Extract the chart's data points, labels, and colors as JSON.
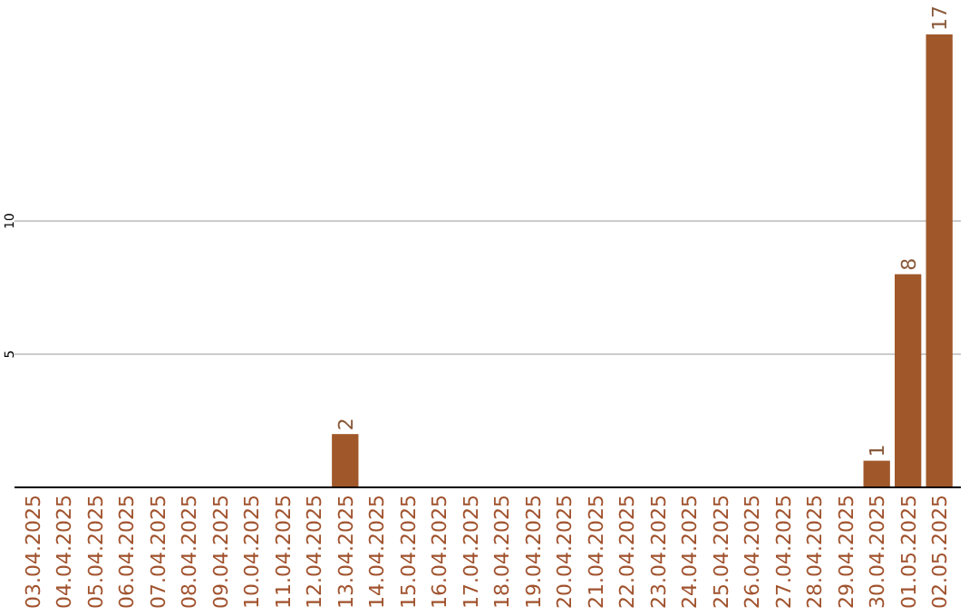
{
  "chart_data": {
    "type": "bar",
    "categories": [
      "03.04.2025",
      "04.04.2025",
      "05.04.2025",
      "06.04.2025",
      "07.04.2025",
      "08.04.2025",
      "09.04.2025",
      "10.04.2025",
      "11.04.2025",
      "12.04.2025",
      "13.04.2025",
      "14.04.2025",
      "15.04.2025",
      "16.04.2025",
      "17.04.2025",
      "18.04.2025",
      "19.04.2025",
      "20.04.2025",
      "21.04.2025",
      "22.04.2025",
      "23.04.2025",
      "24.04.2025",
      "25.04.2025",
      "26.04.2025",
      "27.04.2025",
      "28.04.2025",
      "29.04.2025",
      "30.04.2025",
      "01.05.2025",
      "02.05.2025"
    ],
    "values": [
      0,
      0,
      0,
      0,
      0,
      0,
      0,
      0,
      0,
      0,
      2,
      0,
      0,
      0,
      0,
      0,
      0,
      0,
      0,
      0,
      0,
      0,
      0,
      0,
      0,
      0,
      0,
      1,
      8,
      17
    ],
    "value_labels": [
      null,
      null,
      null,
      null,
      null,
      null,
      null,
      null,
      null,
      null,
      "2",
      null,
      null,
      null,
      null,
      null,
      null,
      null,
      null,
      null,
      null,
      null,
      null,
      null,
      null,
      null,
      null,
      "1",
      "8",
      "17"
    ],
    "color": "#a0582a",
    "ylim": [
      0,
      17
    ],
    "yticks": [
      5,
      10
    ],
    "grid": "y"
  }
}
